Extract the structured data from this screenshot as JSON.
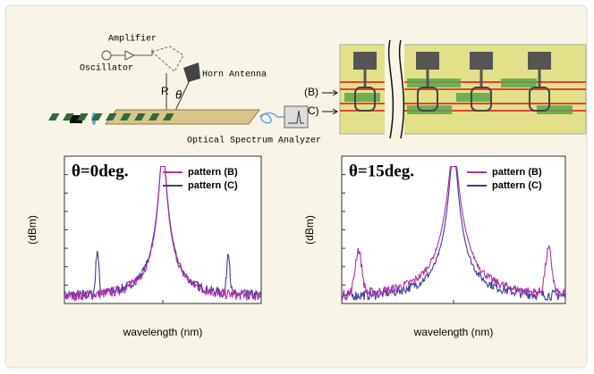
{
  "setup": {
    "amplifier": "Amplifier",
    "oscillator": "Oscillator",
    "horn_antenna": "Horn Antenna",
    "r_label": "R",
    "theta_label": "θ",
    "analyzer": "Optical Spectrum Analyzer"
  },
  "layout_diagram": {
    "labels": [
      "(B)",
      "(C)"
    ]
  },
  "panels": [
    {
      "title": "θ=0deg.",
      "legend": [
        "pattern (B)",
        "pattern (C)"
      ],
      "y_label": "(dBm)",
      "x_label": "wavelength (nm)"
    },
    {
      "title": "θ=15deg.",
      "legend": [
        "pattern (B)",
        "pattern (C)"
      ],
      "y_label": "(dBm)",
      "x_label": "wavelength (nm)"
    }
  ]
}
